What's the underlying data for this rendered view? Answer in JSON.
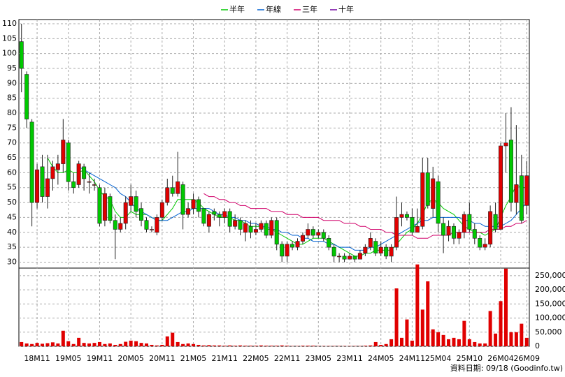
{
  "chart_data": {
    "type": "candlestick",
    "legend_position": "top",
    "grid": true,
    "up_color": "#e00000",
    "down_color": "#00c800",
    "categories": [
      null,
      null,
      null,
      "18M11",
      null,
      null,
      null,
      null,
      null,
      "19M05",
      null,
      null,
      null,
      null,
      null,
      "19M11",
      null,
      null,
      null,
      null,
      null,
      "20M05",
      null,
      null,
      null,
      null,
      null,
      "20M11",
      null,
      null,
      null,
      null,
      null,
      "21M05",
      null,
      null,
      null,
      null,
      null,
      "21M11",
      null,
      null,
      null,
      null,
      null,
      "22M05",
      null,
      null,
      null,
      null,
      null,
      "22M11",
      null,
      null,
      null,
      null,
      null,
      "23M05",
      null,
      null,
      null,
      null,
      null,
      "23M11",
      null,
      null,
      null,
      null,
      null,
      "24M05",
      null,
      null,
      null,
      null,
      null,
      "24M11",
      null,
      null,
      null,
      null,
      "25M04",
      null,
      null,
      null,
      null,
      null,
      "25M10",
      null,
      null,
      null,
      null,
      null,
      "26M04",
      null,
      null,
      null,
      null,
      "26M09"
    ],
    "open": [
      104,
      93,
      77,
      50,
      62,
      52,
      58,
      61,
      63,
      70,
      57,
      56,
      62,
      57,
      56,
      55,
      44,
      52,
      44,
      41,
      43,
      49,
      52,
      48,
      44,
      41,
      40,
      45,
      50,
      55,
      53,
      56,
      46,
      48,
      51,
      48,
      42,
      47,
      46,
      45,
      47,
      42,
      44,
      40,
      42,
      40,
      41,
      43,
      39,
      44,
      36,
      32,
      36,
      35,
      37,
      39,
      41,
      39,
      40,
      38,
      35,
      32,
      32,
      31,
      32,
      31,
      33,
      35,
      37,
      33,
      35,
      32,
      35,
      45,
      46,
      45,
      40,
      42,
      60,
      48,
      57,
      43,
      39,
      42,
      38,
      40,
      46,
      41,
      38,
      35,
      36,
      46,
      41,
      69,
      71,
      50,
      59,
      49
    ],
    "high": [
      110,
      94,
      78,
      63,
      66,
      66,
      64,
      66,
      78,
      71,
      60,
      64,
      63,
      60,
      58,
      56,
      55,
      53,
      46,
      45,
      52,
      56,
      54,
      50,
      45,
      42,
      46,
      51,
      58,
      59,
      67,
      57,
      50,
      53,
      52,
      48,
      47,
      48,
      47,
      48,
      48,
      46,
      45,
      44,
      44,
      43,
      44,
      44,
      45,
      45,
      37,
      37,
      37,
      38,
      40,
      43,
      42,
      41,
      41,
      39,
      36,
      33,
      33,
      33,
      32,
      34,
      36,
      40,
      38,
      37,
      36,
      36,
      52,
      50,
      47,
      48,
      48,
      65,
      65,
      62,
      59,
      45,
      44,
      43,
      41,
      47,
      50,
      43,
      39,
      38,
      49,
      50,
      70,
      80,
      82,
      76,
      66,
      64
    ],
    "low": [
      87,
      75,
      42,
      48,
      50,
      48,
      54,
      56,
      60,
      54,
      53,
      55,
      54,
      53,
      54,
      42,
      42,
      43,
      31,
      40,
      41,
      47,
      45,
      42,
      40,
      40,
      39,
      44,
      49,
      52,
      52,
      41,
      45,
      46,
      45,
      42,
      40,
      44,
      42,
      43,
      40,
      41,
      39,
      37,
      38,
      39,
      40,
      38,
      38,
      34,
      30,
      30,
      34,
      34,
      36,
      38,
      38,
      38,
      37,
      34,
      30,
      30,
      30,
      31,
      30,
      31,
      32,
      34,
      32,
      32,
      31,
      30,
      34,
      42,
      44,
      39,
      40,
      41,
      48,
      45,
      40,
      33,
      37,
      36,
      36,
      38,
      40,
      36,
      34,
      34,
      35,
      40,
      41,
      60,
      47,
      46,
      43,
      46
    ],
    "close": [
      95,
      78,
      50,
      61,
      52,
      58,
      62,
      63,
      71,
      57,
      55,
      63,
      58,
      57,
      56,
      43,
      53,
      44,
      41,
      43,
      50,
      52,
      47,
      44,
      41,
      41,
      45,
      50,
      55,
      53,
      57,
      46,
      48,
      51,
      47,
      43,
      46,
      46,
      45,
      47,
      42,
      44,
      41,
      43,
      40,
      41,
      43,
      39,
      44,
      36,
      32,
      36,
      35,
      37,
      39,
      41,
      39,
      40,
      38,
      35,
      32,
      32,
      31,
      32,
      31,
      33,
      35,
      38,
      33,
      35,
      32,
      35,
      45,
      46,
      45,
      40,
      42,
      60,
      49,
      58,
      43,
      39,
      42,
      38,
      40,
      46,
      41,
      38,
      35,
      36,
      47,
      41,
      69,
      70,
      50,
      56,
      44,
      59
    ],
    "ylim": [
      28,
      111.4
    ],
    "yticks": [
      30,
      35,
      40,
      45,
      50,
      55,
      60,
      65,
      70,
      75,
      80,
      85,
      90,
      95,
      100,
      105,
      110
    ],
    "series": [
      {
        "name": "半年",
        "color": "#00c800",
        "values": [
          null,
          null,
          null,
          null,
          null,
          65,
          62,
          60,
          60,
          61,
          60,
          60,
          61,
          59,
          57,
          54,
          52,
          51,
          47,
          45,
          45,
          47,
          46,
          46,
          46,
          45,
          44,
          44,
          46,
          48,
          51,
          51,
          51,
          51,
          50,
          48,
          47,
          46,
          45,
          45,
          45,
          44,
          44,
          43,
          42,
          42,
          42,
          41,
          41,
          40,
          39,
          38,
          37,
          36,
          36,
          37,
          38,
          38,
          38,
          37,
          36,
          35,
          34,
          33,
          32,
          32,
          33,
          33,
          34,
          34,
          34,
          34,
          36,
          38,
          40,
          41,
          43,
          46,
          50,
          51,
          50,
          48,
          47,
          46,
          44,
          42,
          41,
          40,
          40,
          39,
          40,
          41,
          45,
          49,
          52,
          56,
          55,
          55
        ]
      },
      {
        "name": "年線",
        "color": "#0060d0",
        "values": [
          null,
          null,
          null,
          null,
          null,
          null,
          null,
          null,
          null,
          null,
          null,
          62,
          61,
          60,
          59,
          58,
          57,
          56,
          55,
          53,
          52,
          50,
          48,
          47,
          46,
          45,
          44,
          44,
          44,
          45,
          46,
          47,
          47,
          48,
          48,
          48,
          48,
          47,
          46,
          46,
          45,
          45,
          44,
          44,
          43,
          43,
          42,
          42,
          41,
          41,
          40,
          40,
          39,
          39,
          38,
          38,
          37,
          37,
          37,
          36,
          36,
          35,
          35,
          35,
          34,
          34,
          34,
          35,
          35,
          36,
          37,
          38,
          39,
          40,
          41,
          42,
          43,
          44,
          44,
          45,
          45,
          45,
          45,
          45,
          45,
          44,
          44,
          43,
          43,
          42,
          42,
          42,
          42,
          43,
          44,
          46,
          48,
          50
        ]
      },
      {
        "name": "三年",
        "color": "#d0006a",
        "values": [
          null,
          null,
          null,
          null,
          null,
          null,
          null,
          null,
          null,
          null,
          null,
          null,
          null,
          null,
          null,
          null,
          null,
          null,
          null,
          null,
          null,
          null,
          null,
          null,
          null,
          null,
          null,
          null,
          null,
          null,
          null,
          null,
          null,
          null,
          null,
          53,
          52,
          52,
          51,
          51,
          50,
          50,
          49,
          49,
          48,
          48,
          48,
          48,
          47,
          47,
          47,
          46,
          46,
          46,
          45,
          45,
          45,
          45,
          44,
          44,
          44,
          44,
          43,
          43,
          43,
          42,
          42,
          41,
          41,
          41,
          40,
          40,
          39,
          39,
          39,
          39,
          38,
          38,
          38,
          39,
          39,
          39,
          39,
          40,
          40,
          40,
          40,
          40,
          40,
          40,
          41,
          41,
          41,
          42,
          42,
          43,
          43,
          44
        ]
      },
      {
        "name": "十年",
        "color": "#7000a0",
        "values": [
          null,
          null,
          null,
          null,
          null,
          null,
          null,
          null,
          null,
          null,
          null,
          null,
          null,
          null,
          null,
          null,
          null,
          null,
          null,
          null,
          null,
          null,
          null,
          null,
          null,
          null,
          null,
          null,
          null,
          null,
          null,
          null,
          null,
          null,
          null,
          null,
          null,
          null,
          null,
          null,
          null,
          null,
          null,
          null,
          null,
          null,
          null,
          null,
          null,
          null,
          null,
          null,
          null,
          null,
          null,
          null,
          null,
          null,
          null,
          null,
          null,
          null,
          null,
          null,
          null,
          null,
          null,
          null,
          null,
          null,
          null,
          null,
          null,
          null,
          null,
          null,
          null,
          null,
          null,
          null,
          null,
          null,
          null,
          null,
          null,
          null,
          null,
          null,
          null,
          null,
          null,
          null,
          null,
          null,
          null,
          null,
          null,
          null
        ]
      }
    ],
    "volume": [
      15000,
      10000,
      8000,
      12000,
      9000,
      11000,
      14000,
      10000,
      55000,
      18000,
      8000,
      30000,
      12000,
      10000,
      12000,
      15000,
      8000,
      10000,
      5000,
      8000,
      16000,
      20000,
      18000,
      12000,
      10000,
      5000,
      3000,
      5000,
      35000,
      48000,
      15000,
      8000,
      10000,
      8000,
      5000,
      3000,
      4000,
      3000,
      3000,
      2000,
      3000,
      2000,
      3000,
      2000,
      2000,
      2000,
      3000,
      2000,
      2000,
      2000,
      3000,
      2000,
      1000,
      1000,
      2000,
      2000,
      2000,
      1000,
      1000,
      1000,
      1000,
      1000,
      1000,
      1000,
      1000,
      1000,
      2000,
      3000,
      15000,
      5000,
      8000,
      25000,
      205000,
      30000,
      95000,
      20000,
      290000,
      130000,
      230000,
      60000,
      50000,
      40000,
      25000,
      30000,
      25000,
      90000,
      25000,
      15000,
      10000,
      10000,
      125000,
      45000,
      160000,
      275000,
      50000,
      50000,
      80000,
      30000
    ],
    "volume_color": "#e00000",
    "y2lim": [
      0,
      277000
    ],
    "y2ticks": [
      0,
      {
        "value": 50000,
        "label": "50,000"
      },
      {
        "value": 100000,
        "label": "100,000"
      },
      {
        "value": 150000,
        "label": "150,000"
      },
      {
        "value": 200000,
        "label": "200,000"
      },
      {
        "value": 250000,
        "label": "250,000"
      }
    ],
    "footnote": "資料日期: 09/18 (Goodinfo.tw)"
  }
}
